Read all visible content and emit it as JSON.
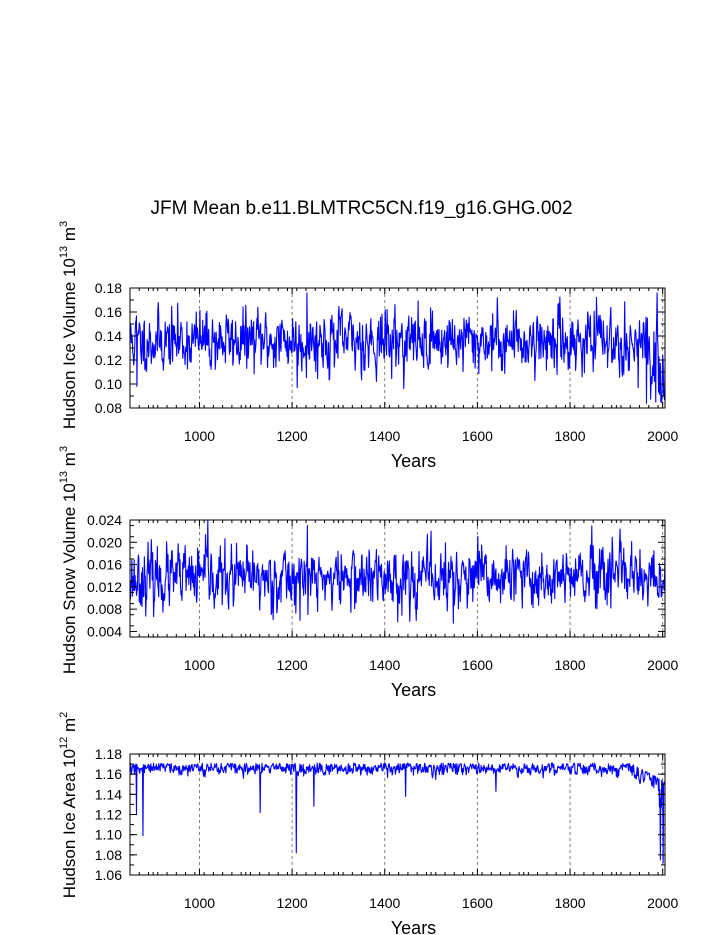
{
  "title": "JFM Mean b.e11.BLMTRC5CN.f19_g16.GHG.002",
  "colors": {
    "series": "#0000ff",
    "axis": "#000000",
    "grid": "#808080"
  },
  "chart_data": [
    {
      "type": "line",
      "name": "ice-volume",
      "ylabel_main": "Hudson Ice Volume 10",
      "ylabel_exp": "13",
      "ylabel_unit": " m",
      "ylabel_unit_exp": "3",
      "xlabel": "Years",
      "xlim": [
        850,
        2005
      ],
      "ylim": [
        0.08,
        0.18
      ],
      "xticks": [
        1000,
        1200,
        1400,
        1600,
        1800,
        2000
      ],
      "xtick_labels": [
        "1000",
        "1200",
        "1400",
        "1600",
        "1800",
        "2000"
      ],
      "yticks": [
        0.08,
        0.1,
        0.12,
        0.14,
        0.16,
        0.18
      ],
      "ytick_labels": [
        "0.08",
        "0.10",
        "0.12",
        "0.14",
        "0.16",
        "0.18"
      ],
      "ytick_minor": 0.01,
      "grid_x": true,
      "series": {
        "name": "Hudson Ice Volume",
        "x_start": 850,
        "x_end": 2005,
        "mean": 0.136,
        "noise": 0.0125,
        "trend_start": 1930,
        "trend_end_mean": 0.112,
        "trend_noise": 0.017,
        "spikes": [
          [
            1232,
            0.176
          ],
          [
            1211,
            0.097
          ],
          [
            865,
            0.098
          ],
          [
            1965,
            0.084
          ],
          [
            1985,
            0.085
          ]
        ],
        "seed": 11
      }
    },
    {
      "type": "line",
      "name": "snow-volume",
      "ylabel_main": "Hudson Snow Volume 10",
      "ylabel_exp": "13",
      "ylabel_unit": " m",
      "ylabel_unit_exp": "3",
      "xlabel": "Years",
      "xlim": [
        850,
        2005
      ],
      "ylim": [
        0.003,
        0.024
      ],
      "xticks": [
        1000,
        1200,
        1400,
        1600,
        1800,
        2000
      ],
      "xtick_labels": [
        "1000",
        "1200",
        "1400",
        "1600",
        "1800",
        "2000"
      ],
      "yticks": [
        0.004,
        0.008,
        0.012,
        0.016,
        0.02,
        0.024
      ],
      "ytick_labels": [
        "0.004",
        "0.008",
        "0.012",
        "0.016",
        "0.020",
        "0.024"
      ],
      "ytick_minor": 0.002,
      "grid_x": true,
      "series": {
        "name": "Hudson Snow Volume",
        "x_start": 850,
        "x_end": 2005,
        "mean": 0.0135,
        "noise": 0.0027,
        "trend_start": 1930,
        "trend_end_mean": 0.0125,
        "trend_noise": 0.0022,
        "spikes": [
          [
            1018,
            0.024
          ],
          [
            1548,
            0.0055
          ],
          [
            1233,
            0.023
          ],
          [
            1500,
            0.022
          ]
        ],
        "seed": 23
      }
    },
    {
      "type": "line",
      "name": "ice-area",
      "ylabel_main": "Hudson Ice Area 10",
      "ylabel_exp": "12",
      "ylabel_unit": " m",
      "ylabel_unit_exp": "2",
      "xlabel": "Years",
      "xlim": [
        850,
        2005
      ],
      "ylim": [
        1.06,
        1.18
      ],
      "xticks": [
        1000,
        1200,
        1400,
        1600,
        1800,
        2000
      ],
      "xtick_labels": [
        "1000",
        "1200",
        "1400",
        "1600",
        "1800",
        "2000"
      ],
      "yticks": [
        1.06,
        1.08,
        1.1,
        1.12,
        1.14,
        1.16,
        1.18
      ],
      "ytick_labels": [
        "1.06",
        "1.08",
        "1.10",
        "1.12",
        "1.14",
        "1.16",
        "1.18"
      ],
      "ytick_minor": 0.01,
      "grid_x": true,
      "series": {
        "name": "Hudson Ice Area",
        "x_start": 850,
        "x_end": 2005,
        "mean": 1.166,
        "noise": 0.0035,
        "trend_start": 1930,
        "trend_end_mean": 1.148,
        "trend_noise": 0.014,
        "spikes": [
          [
            878,
            1.099
          ],
          [
            864,
            1.121
          ],
          [
            1209,
            1.082
          ],
          [
            1131,
            1.122
          ],
          [
            1247,
            1.128
          ],
          [
            1445,
            1.138
          ],
          [
            1640,
            1.143
          ],
          [
            1995,
            1.075
          ],
          [
            2001,
            1.072
          ]
        ],
        "seed": 37
      }
    }
  ]
}
